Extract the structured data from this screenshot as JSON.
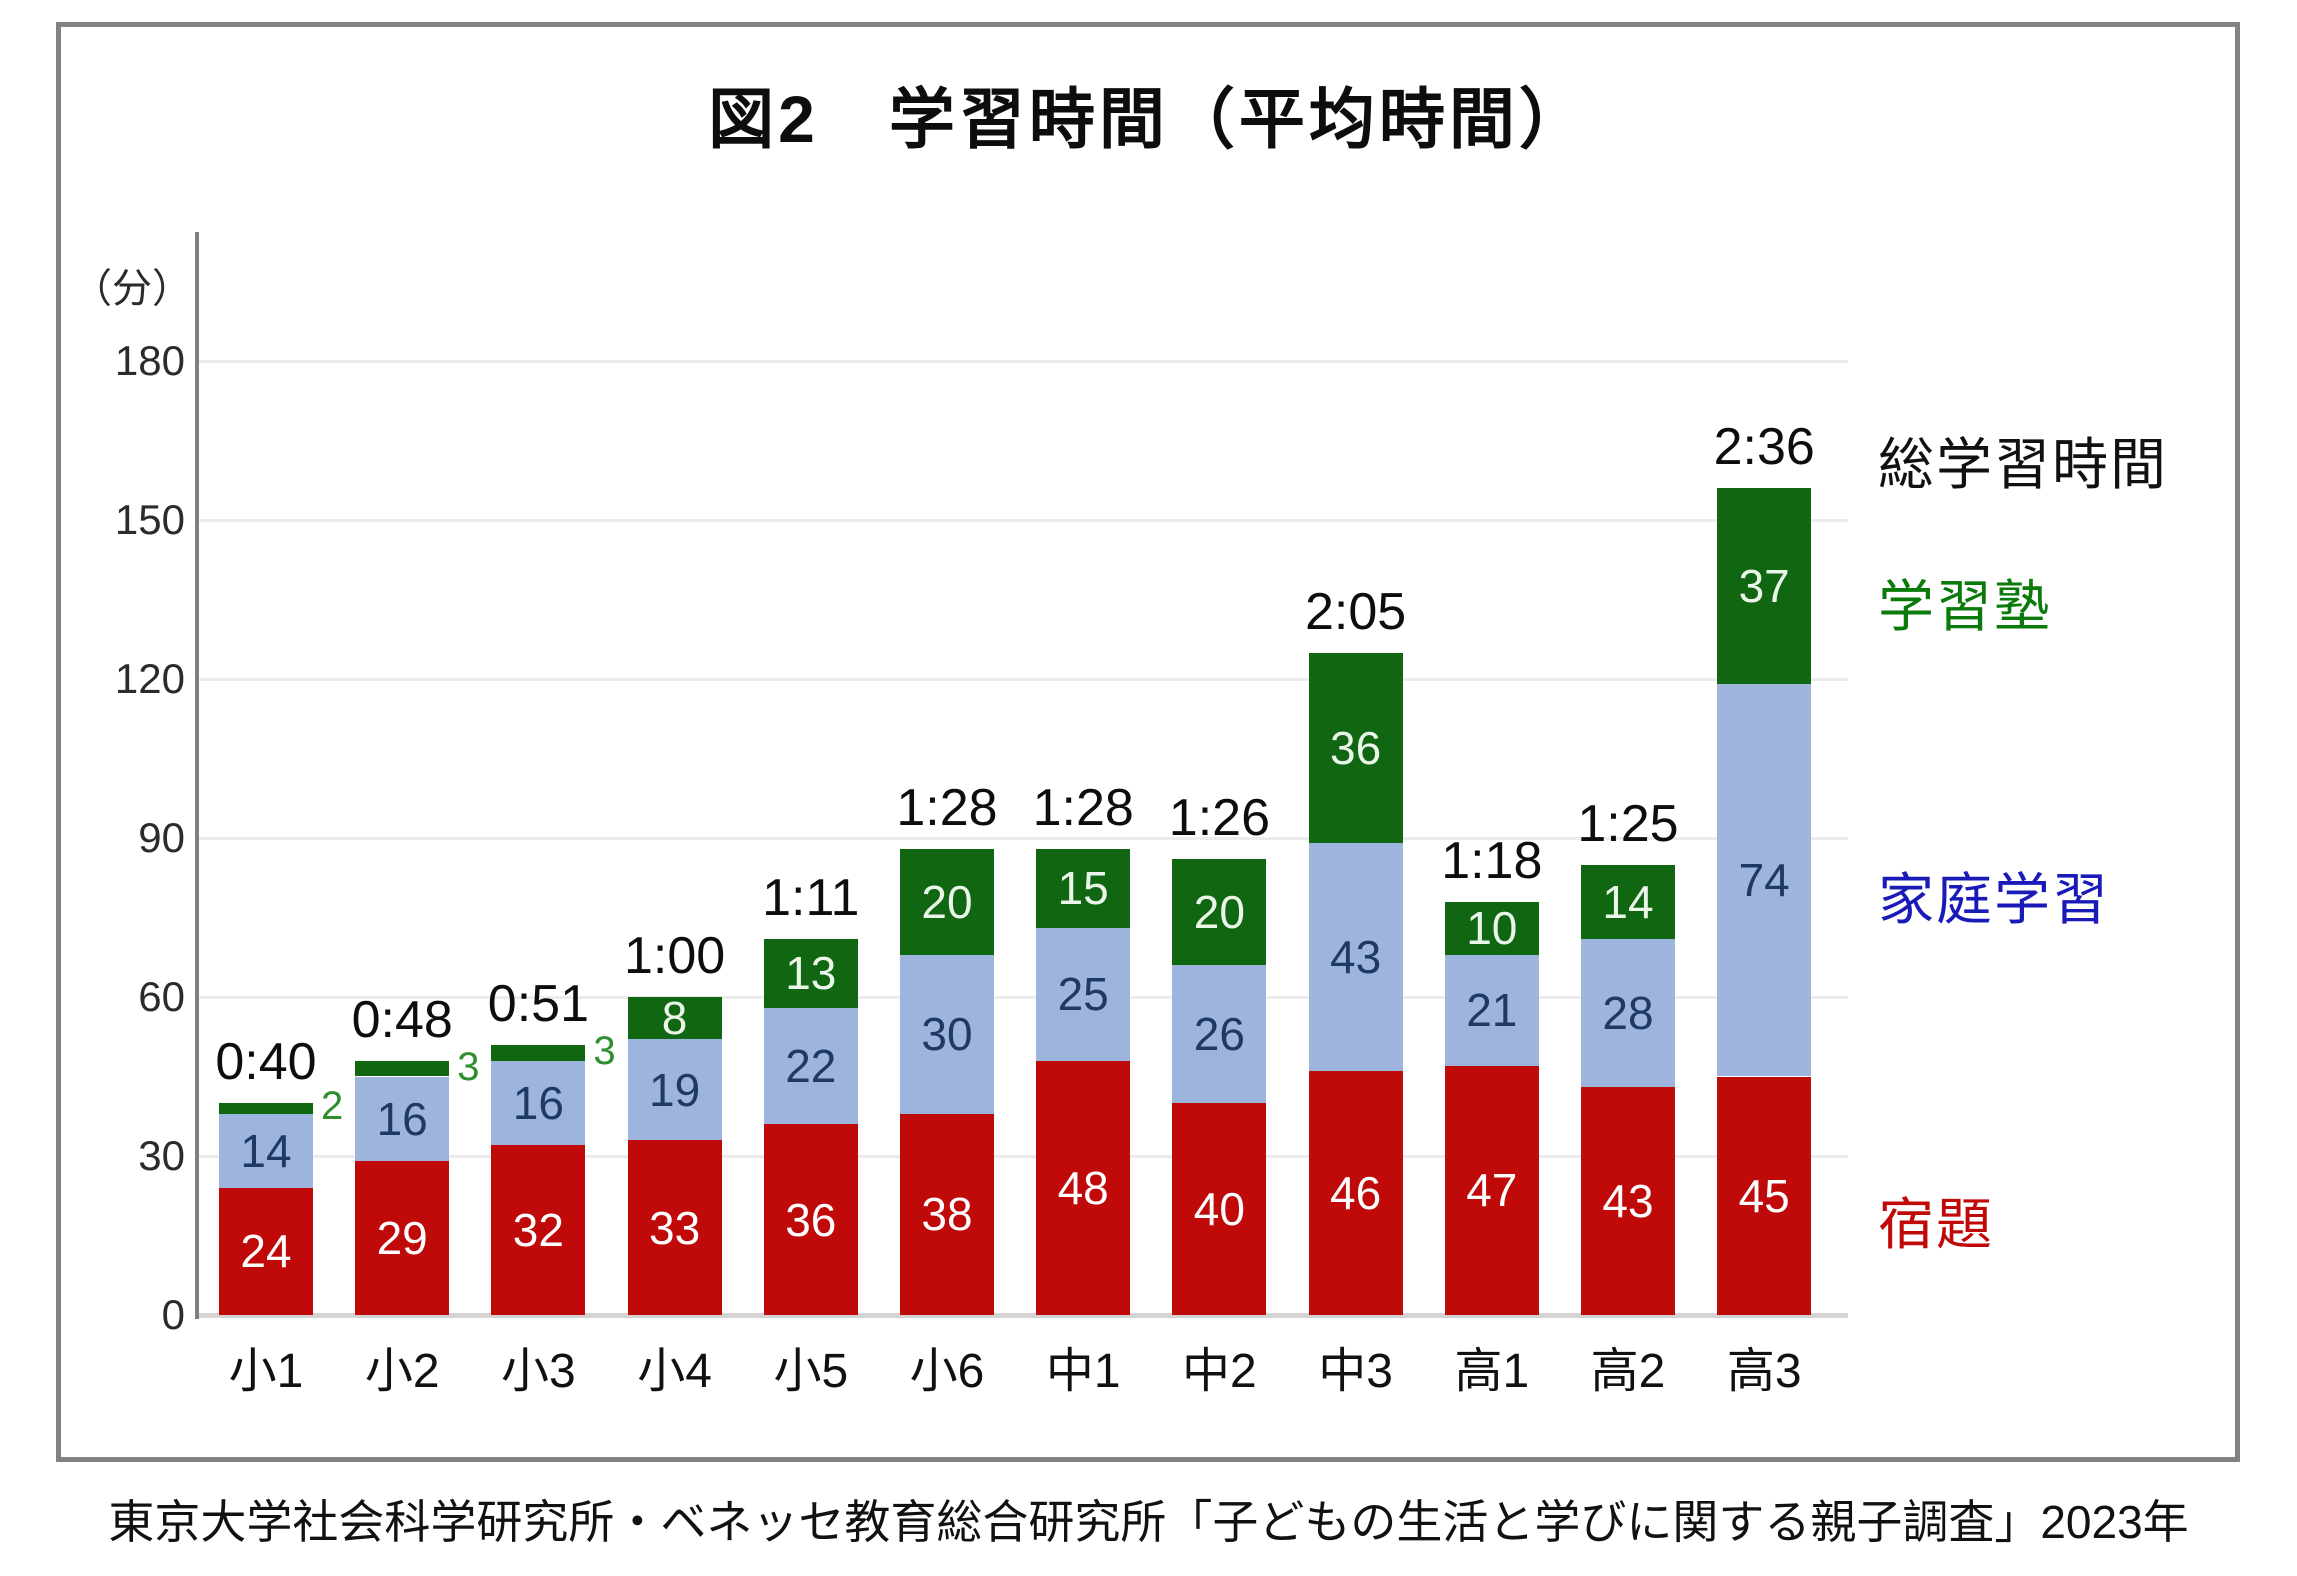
{
  "figure": {
    "title": "図2　学習時間（平均時間）",
    "unit_label": "（分）",
    "source": "東京大学社会科学研究所・ベネッセ教育総合研究所「子どもの生活と学びに関する親子調査」2023年"
  },
  "legend": {
    "total": "総学習時間",
    "juku": "学習塾",
    "home": "家庭学習",
    "homework": "宿題"
  },
  "colors": {
    "homework_bar": "#c00a0a",
    "home_bar": "#9db5dd",
    "juku_bar": "#116611",
    "legend_total": "#111111",
    "legend_juku": "#0a7a0a",
    "legend_home": "#1a1ab8",
    "legend_homework": "#c00a0a",
    "label_on_homework": "#ffffff",
    "label_on_home": "#1f3864",
    "label_on_juku": "#eaf6ea",
    "label_juku_outside": "#2f8f2f",
    "grid": "#ececec"
  },
  "chart_data": {
    "type": "bar",
    "stacked": true,
    "title": "図2　学習時間（平均時間）",
    "ylabel": "（分）",
    "ylim": [
      0,
      180
    ],
    "yticks": [
      0,
      30,
      60,
      90,
      120,
      150,
      180
    ],
    "grid": true,
    "legend_position": "right",
    "categories": [
      "小1",
      "小2",
      "小3",
      "小4",
      "小5",
      "小6",
      "中1",
      "中2",
      "中3",
      "高1",
      "高2",
      "高3"
    ],
    "series": [
      {
        "name": "宿題",
        "color": "#c00a0a",
        "values": [
          24,
          29,
          32,
          33,
          36,
          38,
          48,
          40,
          46,
          47,
          43,
          45
        ]
      },
      {
        "name": "家庭学習",
        "color": "#9db5dd",
        "values": [
          14,
          16,
          16,
          19,
          22,
          30,
          25,
          26,
          43,
          21,
          28,
          74
        ]
      },
      {
        "name": "学習塾",
        "color": "#116611",
        "values": [
          2,
          3,
          3,
          8,
          13,
          20,
          15,
          20,
          36,
          10,
          14,
          37
        ]
      }
    ],
    "totals": [
      "0:40",
      "0:48",
      "0:51",
      "1:00",
      "1:11",
      "1:28",
      "1:28",
      "1:26",
      "2:05",
      "1:18",
      "1:25",
      "2:36"
    ]
  }
}
